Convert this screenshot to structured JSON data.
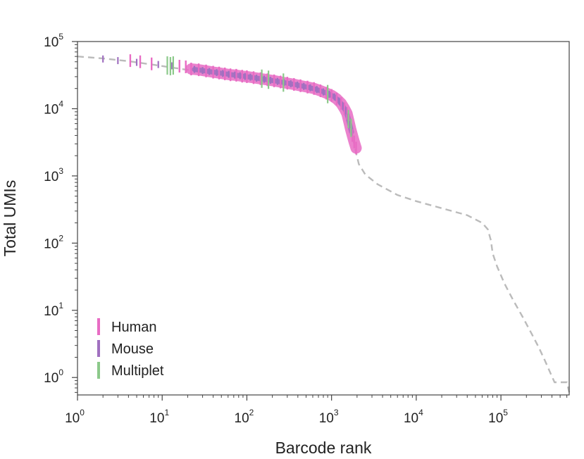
{
  "chart_data": {
    "type": "scatter",
    "title": "",
    "xlabel": "Barcode rank",
    "ylabel": "Total UMIs",
    "xscale": "log",
    "yscale": "log",
    "xlim": [
      1,
      640000
    ],
    "ylim": [
      0.55,
      100000
    ],
    "grid": false,
    "legend": {
      "placement": "bottom-left"
    },
    "xticks": [
      {
        "value": 1,
        "base": "10",
        "exp": "0"
      },
      {
        "value": 10,
        "base": "10",
        "exp": "1"
      },
      {
        "value": 100,
        "base": "10",
        "exp": "2"
      },
      {
        "value": 1000,
        "base": "10",
        "exp": "3"
      },
      {
        "value": 10000,
        "base": "10",
        "exp": "4"
      },
      {
        "value": 100000,
        "base": "10",
        "exp": "5"
      }
    ],
    "yticks": [
      {
        "value": 1,
        "base": "10",
        "exp": "0"
      },
      {
        "value": 10,
        "base": "10",
        "exp": "1"
      },
      {
        "value": 100,
        "base": "10",
        "exp": "2"
      },
      {
        "value": 1000,
        "base": "10",
        "exp": "3"
      },
      {
        "value": 10000,
        "base": "10",
        "exp": "4"
      },
      {
        "value": 100000,
        "base": "10",
        "exp": "5"
      }
    ],
    "background_curve": {
      "color": "#bbbbbb",
      "points": [
        [
          1,
          60000
        ],
        [
          2,
          56000
        ],
        [
          4,
          51000
        ],
        [
          8,
          45000
        ],
        [
          15,
          40000
        ],
        [
          30,
          35000
        ],
        [
          60,
          31000
        ],
        [
          100,
          28500
        ],
        [
          200,
          25500
        ],
        [
          400,
          21500
        ],
        [
          700,
          18000
        ],
        [
          1000,
          15000
        ],
        [
          1300,
          11500
        ],
        [
          1500,
          8000
        ],
        [
          1650,
          5000
        ],
        [
          1800,
          3500
        ],
        [
          1900,
          2500
        ],
        [
          2100,
          1500
        ],
        [
          2500,
          1050
        ],
        [
          3500,
          750
        ],
        [
          6000,
          520
        ],
        [
          10000,
          420
        ],
        [
          20000,
          330
        ],
        [
          40000,
          260
        ],
        [
          60000,
          200
        ],
        [
          70000,
          160
        ],
        [
          76000,
          110
        ],
        [
          80000,
          70
        ],
        [
          90000,
          45
        ],
        [
          110000,
          25
        ],
        [
          140000,
          14
        ],
        [
          180000,
          8
        ],
        [
          230000,
          4.5
        ],
        [
          280000,
          2.8
        ],
        [
          330000,
          1.8
        ],
        [
          380000,
          1.2
        ],
        [
          430000,
          0.85
        ],
        [
          520000,
          0.85
        ],
        [
          600000,
          0.85
        ],
        [
          640000,
          0.6
        ]
      ]
    },
    "series": [
      {
        "name": "Human",
        "color": "#e86cc4",
        "points": [
          [
            4.2,
            52000
          ],
          [
            5.5,
            50000
          ],
          [
            7.5,
            46500
          ],
          [
            16,
            43000
          ],
          [
            19,
            42000
          ],
          [
            22,
            39000
          ],
          [
            27,
            38000
          ],
          [
            33,
            36500
          ],
          [
            40,
            35000
          ],
          [
            47,
            34000
          ],
          [
            55,
            33000
          ],
          [
            64,
            32000
          ],
          [
            75,
            31500
          ],
          [
            88,
            30500
          ],
          [
            100,
            30000
          ],
          [
            120,
            29000
          ],
          [
            145,
            28000
          ],
          [
            175,
            27000
          ],
          [
            210,
            26000
          ],
          [
            250,
            25000
          ],
          [
            300,
            24000
          ],
          [
            360,
            23000
          ],
          [
            430,
            22000
          ],
          [
            520,
            21000
          ],
          [
            620,
            20000
          ],
          [
            740,
            18500
          ],
          [
            870,
            17000
          ],
          [
            1000,
            15800
          ],
          [
            1150,
            14000
          ],
          [
            1300,
            12000
          ],
          [
            1420,
            10000
          ],
          [
            1520,
            8500
          ],
          [
            1600,
            6500
          ],
          [
            1680,
            5000
          ],
          [
            1760,
            4000
          ],
          [
            1850,
            3200
          ],
          [
            1950,
            2600
          ]
        ]
      },
      {
        "name": "Mouse",
        "color": "#a070c0",
        "points": [
          [
            2,
            55000
          ],
          [
            3,
            52000
          ],
          [
            5,
            49000
          ],
          [
            9,
            45500
          ],
          [
            13,
            43500
          ],
          [
            24,
            38500
          ],
          [
            30,
            37000
          ],
          [
            36,
            35800
          ],
          [
            44,
            34500
          ],
          [
            52,
            33500
          ],
          [
            61,
            32500
          ],
          [
            72,
            31700
          ],
          [
            83,
            31000
          ],
          [
            95,
            30200
          ],
          [
            110,
            29500
          ],
          [
            130,
            28500
          ],
          [
            160,
            27500
          ],
          [
            190,
            26500
          ],
          [
            230,
            25500
          ],
          [
            275,
            24500
          ],
          [
            330,
            23500
          ],
          [
            395,
            22500
          ],
          [
            470,
            21500
          ],
          [
            560,
            20500
          ],
          [
            670,
            19300
          ],
          [
            800,
            17800
          ],
          [
            940,
            16400
          ],
          [
            1080,
            15000
          ],
          [
            1230,
            13000
          ],
          [
            1360,
            11000
          ],
          [
            1470,
            9300
          ],
          [
            1560,
            7500
          ],
          [
            1640,
            5800
          ],
          [
            1720,
            4500
          ]
        ]
      },
      {
        "name": "Multiplet",
        "color": "#8cc98a",
        "points": [
          [
            11.5,
            44000
          ],
          [
            12.5,
            43000
          ],
          [
            13.5,
            44000
          ],
          [
            150,
            28000
          ],
          [
            180,
            27000
          ],
          [
            270,
            24500
          ],
          [
            900,
            16500
          ],
          [
            1580,
            7000
          ],
          [
            1700,
            5200
          ]
        ]
      }
    ]
  }
}
